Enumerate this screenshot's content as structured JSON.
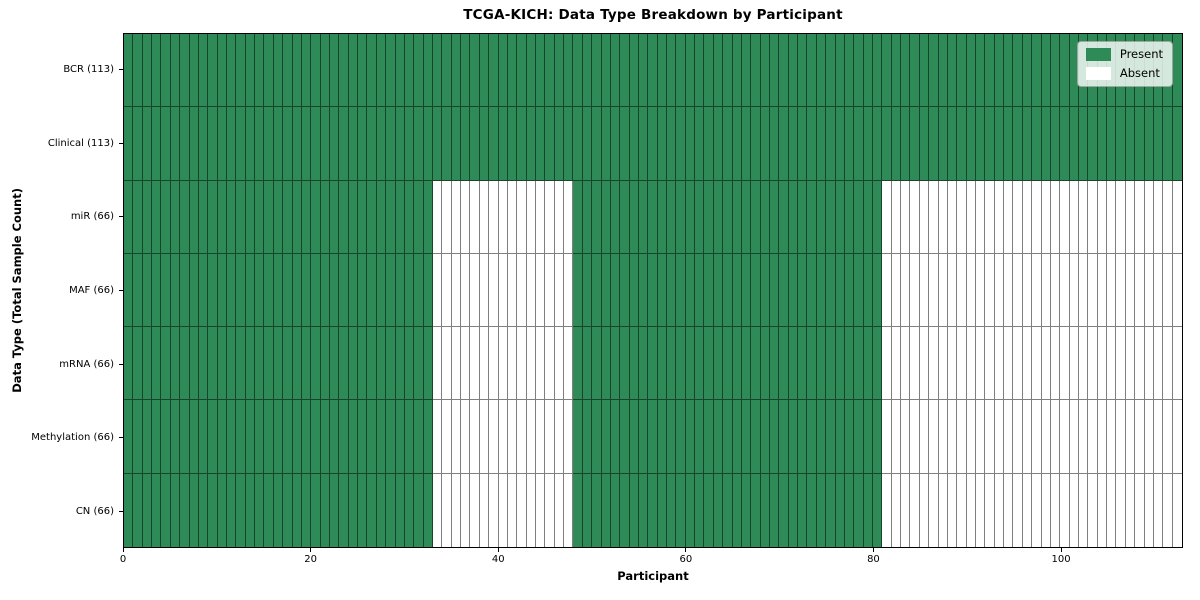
{
  "figure": {
    "title": "TCGA-KICH: Data Type Breakdown by Participant"
  },
  "chart_data": {
    "type": "heatmap",
    "title": "TCGA-KICH: Data Type Breakdown by Participant",
    "xlabel": "Participant",
    "ylabel": "Data Type (Total Sample Count)",
    "x_ticks": [
      0,
      20,
      40,
      60,
      80,
      100
    ],
    "x_range": [
      0,
      113
    ],
    "n_participants": 113,
    "grid": "cell-borders",
    "legend_position": "upper-right",
    "legend": [
      {
        "label": "Present",
        "color": "#2e8b57"
      },
      {
        "label": "Absent",
        "color": "#ffffff"
      }
    ],
    "cell_edge_color": "rgba(0,0,0,0.5)",
    "rows": [
      {
        "label": "BCR (113)",
        "data_type": "BCR",
        "total_samples": 113,
        "present_ranges": [
          [
            0,
            113
          ]
        ]
      },
      {
        "label": "Clinical (113)",
        "data_type": "Clinical",
        "total_samples": 113,
        "present_ranges": [
          [
            0,
            113
          ]
        ]
      },
      {
        "label": "miR (66)",
        "data_type": "miR",
        "total_samples": 66,
        "present_ranges": [
          [
            0,
            33
          ],
          [
            48,
            81
          ]
        ]
      },
      {
        "label": "MAF (66)",
        "data_type": "MAF",
        "total_samples": 66,
        "present_ranges": [
          [
            0,
            33
          ],
          [
            48,
            81
          ]
        ]
      },
      {
        "label": "mRNA (66)",
        "data_type": "mRNA",
        "total_samples": 66,
        "present_ranges": [
          [
            0,
            33
          ],
          [
            48,
            81
          ]
        ]
      },
      {
        "label": "Methylation (66)",
        "data_type": "Methylation",
        "total_samples": 66,
        "present_ranges": [
          [
            0,
            33
          ],
          [
            48,
            81
          ]
        ]
      },
      {
        "label": "CN (66)",
        "data_type": "CN",
        "total_samples": 66,
        "present_ranges": [
          [
            0,
            33
          ],
          [
            48,
            81
          ]
        ]
      }
    ]
  }
}
